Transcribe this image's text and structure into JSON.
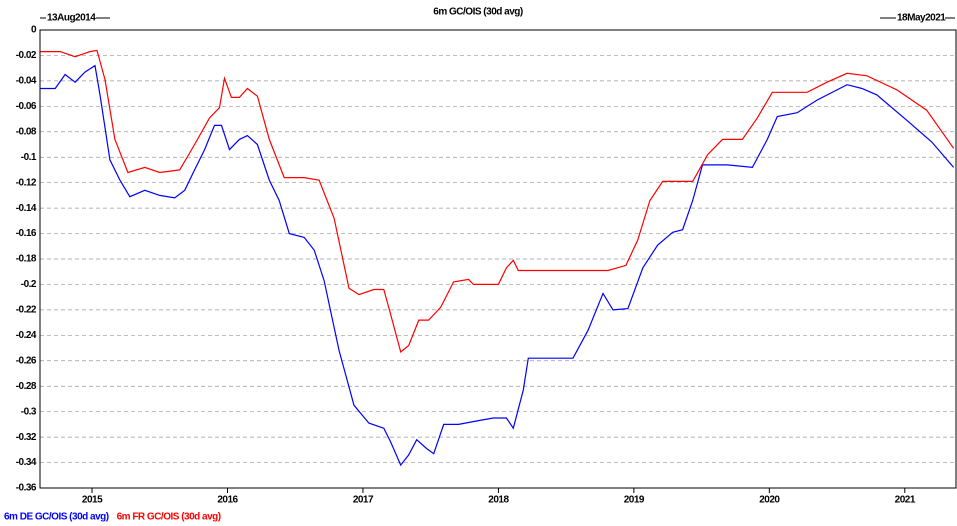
{
  "chart_data": {
    "type": "line",
    "title": "6m GC/OIS (30d avg)",
    "annotations": [
      "13Aug2014",
      "18May2021"
    ],
    "xlim": [
      2014.616,
      2021.378
    ],
    "xticks": [
      2015,
      2016,
      2017,
      2018,
      2019,
      2020,
      2021
    ],
    "ylim": [
      -0.36,
      0
    ],
    "yticks": [
      0,
      -0.02,
      -0.04,
      -0.06,
      -0.08,
      -0.1,
      -0.12,
      -0.14,
      -0.16,
      -0.18,
      -0.2,
      -0.22,
      -0.24,
      -0.26,
      -0.28,
      -0.3,
      -0.32,
      -0.34,
      -0.36
    ],
    "grid": true,
    "series": [
      {
        "name": "6m DE GC/OIS (30d avg)",
        "color": "#0000ff",
        "x": [
          2014.618,
          2014.728,
          2014.801,
          2014.875,
          2014.949,
          2015.022,
          2015.059,
          2015.132,
          2015.206,
          2015.279,
          2015.39,
          2015.5,
          2015.61,
          2015.684,
          2015.757,
          2015.831,
          2015.904,
          2015.956,
          2016.015,
          2016.088,
          2016.147,
          2016.221,
          2016.309,
          2016.382,
          2016.456,
          2016.566,
          2016.64,
          2016.713,
          2016.824,
          2016.934,
          2017.044,
          2017.154,
          2017.206,
          2017.279,
          2017.338,
          2017.397,
          2017.471,
          2017.522,
          2017.596,
          2017.706,
          2017.853,
          2017.963,
          2018.059,
          2018.11,
          2018.184,
          2018.221,
          2018.441,
          2018.551,
          2018.662,
          2018.772,
          2018.846,
          2018.956,
          2019.066,
          2019.176,
          2019.287,
          2019.36,
          2019.434,
          2019.507,
          2019.691,
          2019.875,
          2019.985,
          2020.059,
          2020.206,
          2020.353,
          2020.574,
          2020.684,
          2020.794,
          2021.015,
          2021.199,
          2021.36
        ],
        "values": [
          -0.046,
          -0.046,
          -0.035,
          -0.041,
          -0.033,
          -0.028,
          -0.051,
          -0.102,
          -0.118,
          -0.131,
          -0.126,
          -0.13,
          -0.132,
          -0.126,
          -0.11,
          -0.094,
          -0.075,
          -0.075,
          -0.094,
          -0.086,
          -0.083,
          -0.09,
          -0.118,
          -0.134,
          -0.16,
          -0.163,
          -0.173,
          -0.197,
          -0.252,
          -0.295,
          -0.309,
          -0.313,
          -0.324,
          -0.342,
          -0.334,
          -0.322,
          -0.329,
          -0.333,
          -0.31,
          -0.31,
          -0.307,
          -0.305,
          -0.305,
          -0.313,
          -0.283,
          -0.258,
          -0.258,
          -0.258,
          -0.236,
          -0.207,
          -0.22,
          -0.219,
          -0.187,
          -0.169,
          -0.159,
          -0.157,
          -0.134,
          -0.106,
          -0.106,
          -0.108,
          -0.086,
          -0.068,
          -0.065,
          -0.055,
          -0.043,
          -0.046,
          -0.051,
          -0.071,
          -0.088,
          -0.108
        ]
      },
      {
        "name": "6m FR GC/OIS (30d avg)",
        "color": "#ff0000",
        "x": [
          2014.618,
          2014.765,
          2014.875,
          2014.985,
          2015.037,
          2015.096,
          2015.169,
          2015.265,
          2015.39,
          2015.5,
          2015.647,
          2015.757,
          2015.868,
          2015.941,
          2015.978,
          2016.029,
          2016.088,
          2016.147,
          2016.221,
          2016.309,
          2016.419,
          2016.566,
          2016.676,
          2016.787,
          2016.897,
          2016.971,
          2017.081,
          2017.154,
          2017.206,
          2017.279,
          2017.338,
          2017.412,
          2017.485,
          2017.574,
          2017.669,
          2017.779,
          2017.816,
          2017.926,
          2018.0,
          2018.059,
          2018.11,
          2018.147,
          2018.331,
          2018.551,
          2018.809,
          2018.941,
          2019.029,
          2019.118,
          2019.213,
          2019.434,
          2019.544,
          2019.654,
          2019.801,
          2019.912,
          2020.022,
          2020.279,
          2020.426,
          2020.574,
          2020.721,
          2020.941,
          2021.162,
          2021.36
        ],
        "values": [
          -0.017,
          -0.017,
          -0.021,
          -0.017,
          -0.016,
          -0.039,
          -0.086,
          -0.112,
          -0.108,
          -0.112,
          -0.11,
          -0.09,
          -0.069,
          -0.061,
          -0.038,
          -0.053,
          -0.053,
          -0.046,
          -0.052,
          -0.086,
          -0.116,
          -0.116,
          -0.118,
          -0.148,
          -0.203,
          -0.208,
          -0.204,
          -0.204,
          -0.224,
          -0.253,
          -0.248,
          -0.228,
          -0.228,
          -0.218,
          -0.198,
          -0.196,
          -0.2,
          -0.2,
          -0.2,
          -0.187,
          -0.181,
          -0.189,
          -0.189,
          -0.189,
          -0.189,
          -0.185,
          -0.165,
          -0.134,
          -0.119,
          -0.119,
          -0.098,
          -0.086,
          -0.086,
          -0.069,
          -0.049,
          -0.049,
          -0.041,
          -0.034,
          -0.036,
          -0.047,
          -0.063,
          -0.093
        ]
      }
    ]
  }
}
